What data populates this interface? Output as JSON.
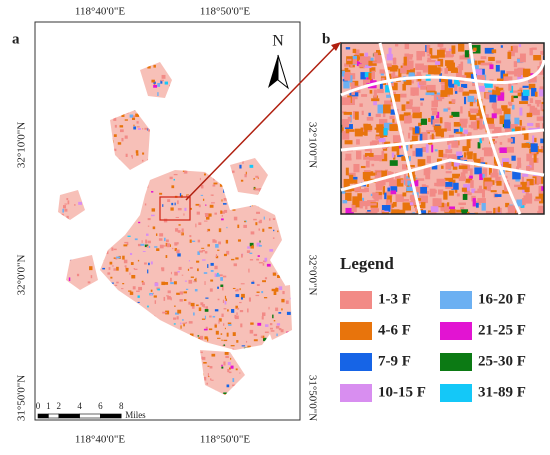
{
  "panels": [
    {
      "label": "a"
    },
    {
      "label": "b"
    }
  ],
  "map": {
    "top_labels": [
      "118°40'0\"E",
      "118°50'0\"E"
    ],
    "bottom_labels": [
      "118°40'0\"E",
      "118°50'0\"E"
    ],
    "left_labels": [
      "32°10'0\"N",
      "32°0'0\"N",
      "31°50'0\"N"
    ],
    "right_labels": [
      "32°10'0\"N",
      "32°0'0\"N",
      "31°50'0\"N"
    ],
    "north": "N"
  },
  "scale_bar": {
    "ticks": [
      0,
      1,
      2,
      4,
      6,
      8
    ],
    "unit": "Miles"
  },
  "legend": {
    "title": "Legend",
    "items": [
      {
        "label": "1-3 F",
        "color": "#f28a86"
      },
      {
        "label": "4-6 F",
        "color": "#e8740c"
      },
      {
        "label": "7-9 F",
        "color": "#1664e6"
      },
      {
        "label": "10-15 F",
        "color": "#d88ef0"
      },
      {
        "label": "16-20 F",
        "color": "#6cb0f2"
      },
      {
        "label": "21-25 F",
        "color": "#e214d2"
      },
      {
        "label": "25-30 F",
        "color": "#0c7a14"
      },
      {
        "label": "31-89 F",
        "color": "#14c8f8"
      }
    ]
  }
}
